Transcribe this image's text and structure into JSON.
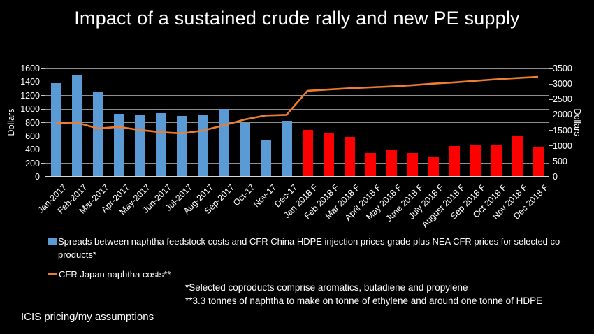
{
  "title": "Impact of a sustained crude rally and new PE supply",
  "source": "ICIS pricing/my assumptions",
  "footnotes": [
    "*Selected coproducts comprise aromatics, butadiene and propylene",
    "**3.3 tonnes of naphtha to make on tonne of ethylene and around one tonne of HDPE"
  ],
  "legend": {
    "items": [
      {
        "swatch": "bar",
        "color": "#5B9BD5",
        "label": "Spreads between naphtha feedstock costs and CFR China HDPE injection prices grade plus NEA CFR prices for selected co-products*"
      },
      {
        "swatch": "line",
        "color": "#ED7D31",
        "label": "CFR Japan naphtha costs**"
      }
    ]
  },
  "colors": {
    "background": "#000000",
    "bar_actual": "#5B9BD5",
    "bar_forecast": "#FF0000",
    "line": "#ED7D31",
    "gridline": "#8F8F8F",
    "axis": "#D9D9D9",
    "text": "#FFFFFF"
  },
  "chart_data": {
    "type": "bar",
    "categories": [
      "Jan-2017",
      "Feb-2017",
      "Mar-2017",
      "Apr-2017",
      "May-2017",
      "Jun-2017",
      "Jul-2017",
      "Aug-2017",
      "Sep-2017",
      "Oct-17",
      "Nov-17",
      "Dec-17",
      "Jan 2018 F",
      "Feb 2018 F",
      "Mar 2018 F",
      "April 2018 F",
      "May 2018 F",
      "June 2018 F",
      "July 2018 F",
      "August 2018 F",
      "Sep 2018 F",
      "Oct 2018 F",
      "Nov 2018 F",
      "Dec 2018 F"
    ],
    "series": [
      {
        "name": "Spreads between naphtha feedstock costs and CFR China HDPE injection prices grade plus NEA CFR prices for selected co-products*",
        "type": "bar",
        "axis": "left",
        "color_actual": "#5B9BD5",
        "color_forecast": "#FF0000",
        "forecast_start_index": 12,
        "values": [
          1380,
          1500,
          1250,
          930,
          920,
          940,
          900,
          920,
          1000,
          790,
          550,
          830,
          690,
          650,
          590,
          355,
          390,
          350,
          300,
          450,
          470,
          460,
          610,
          430
        ]
      },
      {
        "name": "CFR Japan naphtha costs**",
        "type": "line",
        "axis": "right",
        "color": "#ED7D31",
        "values": [
          1740,
          1750,
          1560,
          1610,
          1510,
          1440,
          1400,
          1490,
          1660,
          1850,
          1980,
          2000,
          2780,
          2820,
          2860,
          2890,
          2920,
          2960,
          3010,
          3050,
          3100,
          3150,
          3190,
          3230
        ]
      }
    ],
    "left_axis": {
      "label": "Dollars",
      "min": 0,
      "max": 1600,
      "step": 200,
      "tick_labels": [
        "0",
        "200",
        "400",
        "600",
        "800",
        "1000",
        "1200",
        "1400",
        "1600"
      ]
    },
    "right_axis": {
      "label": "Dollars",
      "min": 0,
      "max": 3500,
      "step": 500,
      "tick_labels": [
        "0",
        "500",
        "1000",
        "1500",
        "2000",
        "2500",
        "3000",
        "3500"
      ]
    },
    "grid": true,
    "legend_position": "bottom"
  }
}
